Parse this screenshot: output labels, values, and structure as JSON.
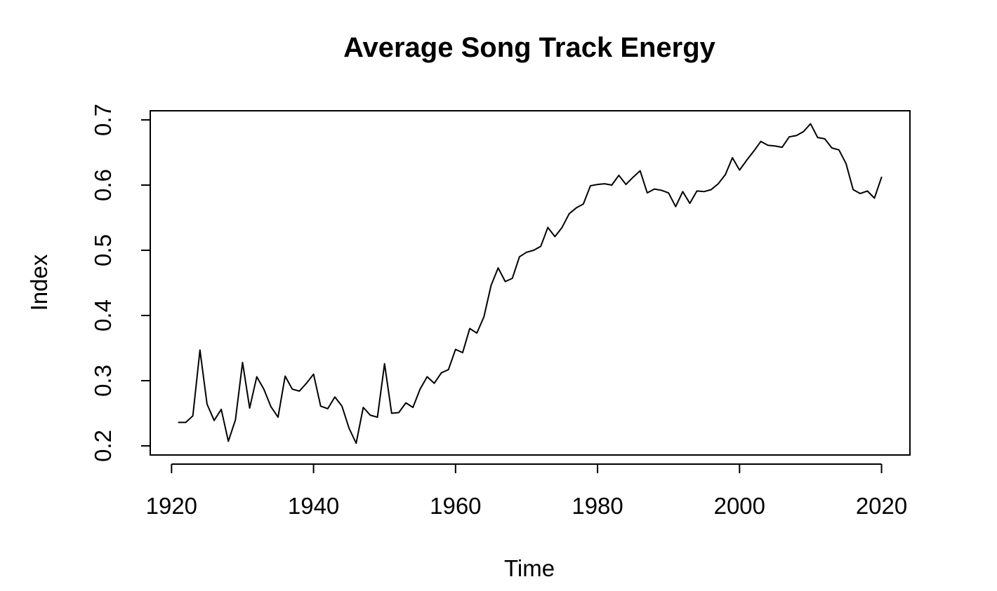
{
  "chart_data": {
    "type": "line",
    "title": "Average Song Track Energy",
    "xlabel": "Time",
    "ylabel": "Index",
    "xlim": [
      1917,
      2024
    ],
    "ylim": [
      0.186,
      0.714
    ],
    "x_ticks": [
      1920,
      1940,
      1960,
      1980,
      2000,
      2020
    ],
    "y_ticks": [
      0.2,
      0.3,
      0.4,
      0.5,
      0.6,
      0.7
    ],
    "x_tick_labels": [
      "1920",
      "1940",
      "1960",
      "1980",
      "2000",
      "2020"
    ],
    "y_tick_labels": [
      "0.2",
      "0.3",
      "0.4",
      "0.5",
      "0.6",
      "0.7"
    ],
    "grid": false,
    "legend": "none",
    "line_color": "#000000",
    "series": [
      {
        "x": [
          1921,
          1922,
          1923,
          1924,
          1925,
          1926,
          1927,
          1928,
          1929,
          1930,
          1931,
          1932,
          1933,
          1934,
          1935,
          1936,
          1937,
          1938,
          1939,
          1940,
          1941,
          1942,
          1943,
          1944,
          1945,
          1946,
          1947,
          1948,
          1949,
          1950,
          1951,
          1952,
          1953,
          1954,
          1955,
          1956,
          1957,
          1958,
          1959,
          1960,
          1961,
          1962,
          1963,
          1964,
          1965,
          1966,
          1967,
          1968,
          1969,
          1970,
          1971,
          1972,
          1973,
          1974,
          1975,
          1976,
          1977,
          1978,
          1979,
          1980,
          1981,
          1982,
          1983,
          1984,
          1985,
          1986,
          1987,
          1988,
          1989,
          1990,
          1991,
          1992,
          1993,
          1994,
          1995,
          1996,
          1997,
          1998,
          1999,
          2000,
          2001,
          2002,
          2003,
          2004,
          2005,
          2006,
          2007,
          2008,
          2009,
          2010,
          2011,
          2012,
          2013,
          2014,
          2015,
          2016,
          2017,
          2018,
          2019,
          2020
        ],
        "values": [
          0.236,
          0.236,
          0.246,
          0.347,
          0.264,
          0.239,
          0.256,
          0.207,
          0.24,
          0.328,
          0.258,
          0.306,
          0.287,
          0.26,
          0.244,
          0.307,
          0.287,
          0.284,
          0.296,
          0.31,
          0.261,
          0.257,
          0.275,
          0.261,
          0.227,
          0.204,
          0.259,
          0.247,
          0.244,
          0.326,
          0.25,
          0.251,
          0.266,
          0.259,
          0.287,
          0.306,
          0.296,
          0.312,
          0.317,
          0.348,
          0.343,
          0.38,
          0.373,
          0.398,
          0.446,
          0.473,
          0.452,
          0.457,
          0.49,
          0.497,
          0.5,
          0.506,
          0.535,
          0.521,
          0.535,
          0.556,
          0.565,
          0.571,
          0.599,
          0.601,
          0.602,
          0.6,
          0.615,
          0.601,
          0.612,
          0.622,
          0.588,
          0.594,
          0.592,
          0.588,
          0.567,
          0.59,
          0.572,
          0.591,
          0.59,
          0.593,
          0.602,
          0.616,
          0.642,
          0.623,
          0.638,
          0.652,
          0.667,
          0.661,
          0.66,
          0.658,
          0.674,
          0.676,
          0.682,
          0.694,
          0.673,
          0.671,
          0.657,
          0.654,
          0.633,
          0.593,
          0.587,
          0.591,
          0.58,
          0.612
        ]
      }
    ]
  }
}
